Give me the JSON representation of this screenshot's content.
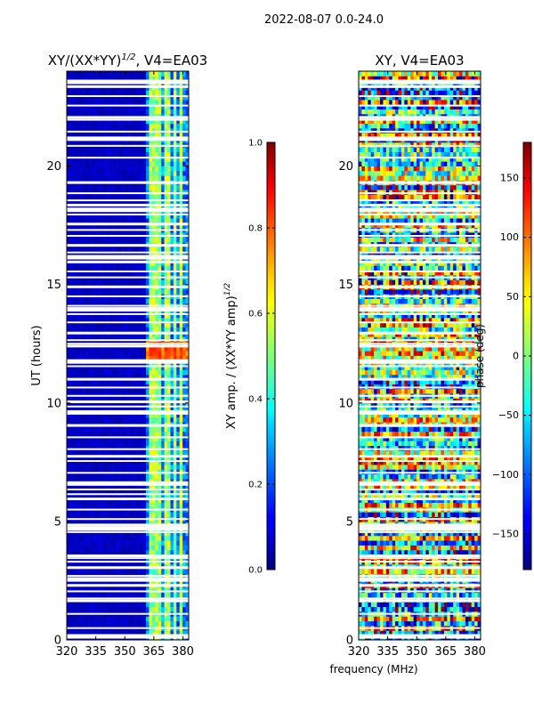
{
  "header": {
    "date_range": "2022-08-07 0.0-24.0"
  },
  "chart_data": [
    {
      "type": "heatmap",
      "id": "amp",
      "title_html": "XY/(XX*YY)<sup>1/2</sup>, V4=EA03",
      "title_text": "XY/(XX*YY)^1/2, V4=EA03",
      "xlabel": "",
      "ylabel": "UT (hours)",
      "x_ticks": [
        320,
        335,
        350,
        365,
        380
      ],
      "y_ticks": [
        0,
        5,
        10,
        15,
        20
      ],
      "xlim": [
        320,
        383
      ],
      "ylim": [
        0,
        24
      ],
      "colormap": "jet",
      "colorbar": {
        "label": "XY amp. / (XX*YY amp)^1/2",
        "ticks": [
          "0.0",
          "0.2",
          "0.4",
          "0.6",
          "0.8",
          "1.0"
        ],
        "range": [
          0,
          1
        ]
      },
      "notes": "Low amplitude (~0.05) across 320-360 MHz; bright vertical stripes (~0.4-0.6) near 362-380 MHz; high values (~0.75-0.85) around UT 11.8-12.6 h; white horizontal gaps are flagged data."
    },
    {
      "type": "heatmap",
      "id": "phase",
      "title": "XY, V4=EA03",
      "xlabel": "frequency (MHz)",
      "ylabel": "",
      "x_ticks": [
        320,
        335,
        350,
        365,
        380
      ],
      "y_ticks": [
        0,
        5,
        10,
        15,
        20
      ],
      "xlim": [
        320,
        383
      ],
      "ylim": [
        0,
        24
      ],
      "colormap": "jet",
      "colorbar": {
        "label": "phase (deg)",
        "ticks": [
          "150",
          "100",
          "50",
          "0",
          "−50",
          "−100",
          "−150"
        ],
        "range": [
          -180,
          180
        ]
      },
      "notes": "Noisy phase across all frequencies and times spanning -180 to 180 deg; white horizontal gaps are flagged data."
    }
  ],
  "flagged_gaps_hours": [
    0.15,
    0.5,
    1.1,
    1.65,
    1.75,
    2.05,
    2.3,
    2.55,
    2.7,
    3.05,
    3.3,
    3.45,
    3.55,
    4.55,
    4.7,
    4.85,
    5.1,
    5.5,
    5.95,
    6.15,
    6.35,
    6.6,
    7.05,
    7.55,
    7.75,
    8.05,
    8.55,
    9.05,
    9.6,
    9.85,
    10.05,
    10.3,
    10.65,
    11.0,
    11.55,
    11.75,
    12.4,
    12.5,
    12.65,
    12.95,
    13.4,
    13.75,
    13.95,
    14.1,
    14.5,
    14.9,
    15.3,
    15.55,
    15.95,
    16.15,
    16.35,
    16.65,
    17.05,
    17.3,
    17.55,
    17.95,
    18.15,
    18.35,
    18.55,
    18.85,
    19.3,
    20.35,
    20.85,
    21.15,
    21.45,
    21.95,
    22.05,
    22.55,
    22.95,
    23.35,
    23.55
  ]
}
